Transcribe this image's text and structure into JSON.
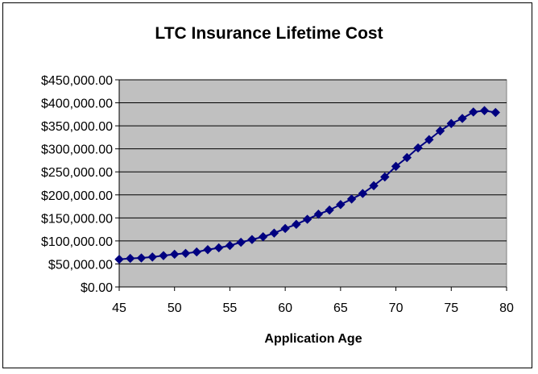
{
  "chart_data": {
    "type": "line",
    "title": "LTC Insurance Lifetime Cost",
    "xlabel": "Application Age",
    "ylabel": "",
    "xlim": [
      45,
      80
    ],
    "ylim": [
      0,
      450000
    ],
    "x_ticks": [
      45,
      50,
      55,
      60,
      65,
      70,
      75,
      80
    ],
    "x_tick_labels": [
      "45",
      "50",
      "55",
      "60",
      "65",
      "70",
      "75",
      "80"
    ],
    "y_ticks": [
      0,
      50000,
      100000,
      150000,
      200000,
      250000,
      300000,
      350000,
      400000,
      450000
    ],
    "y_tick_labels": [
      "$0.00",
      "$50,000.00",
      "$100,000.00",
      "$150,000.00",
      "$200,000.00",
      "$250,000.00",
      "$300,000.00",
      "$350,000.00",
      "$400,000.00",
      "$450,000.00"
    ],
    "grid": true,
    "legend": "none",
    "plot_background": "#c0c0c0",
    "series_color": "#000080",
    "marker": "diamond",
    "series": [
      {
        "x": [
          45,
          46,
          47,
          48,
          49,
          50,
          51,
          52,
          53,
          54,
          55,
          56,
          57,
          58,
          59,
          60,
          61,
          62,
          63,
          64,
          65,
          66,
          67,
          68,
          69,
          70,
          71,
          72,
          73,
          74,
          75,
          76,
          77,
          78,
          79
        ],
        "values": [
          60000,
          62000,
          63000,
          65000,
          68000,
          71000,
          73000,
          76000,
          81000,
          85000,
          90000,
          97000,
          103000,
          109000,
          117000,
          127000,
          136000,
          147000,
          158000,
          167000,
          179000,
          191000,
          203000,
          220000,
          239000,
          262000,
          281000,
          302000,
          320000,
          339000,
          355000,
          366000,
          380000,
          383000,
          379000
        ]
      }
    ]
  }
}
